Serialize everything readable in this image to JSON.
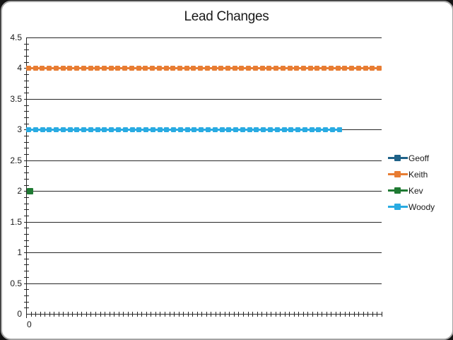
{
  "window": {
    "background_color": "#141414",
    "card_background": "#ffffff",
    "card_border_color": "#a3a3a3"
  },
  "chart_data": {
    "type": "line",
    "title": "Lead Changes",
    "xlabel": "",
    "ylabel": "",
    "y_axis": {
      "min": 0,
      "max": 4.5,
      "major_step": 0.5,
      "minor_step": 0.1,
      "tick_labels": [
        "4.5",
        "4",
        "3.5",
        "3",
        "2.5",
        "2",
        "1.5",
        "1",
        "0.5",
        "0"
      ]
    },
    "x_axis": {
      "tick_labels": [
        "0"
      ],
      "minor_tick_count": 77
    },
    "grid": "horizontal gridlines at every 0.5, black",
    "legend_position": "right",
    "series": [
      {
        "name": "Geoff",
        "color": "#1f6288",
        "value": null,
        "num_markers": 0,
        "start_fraction": 0,
        "end_fraction": 0,
        "note": "legend entry only - no visible data points in plot"
      },
      {
        "name": "Keith",
        "color": "#e87d33",
        "value": 4,
        "num_markers": 52,
        "start_fraction": 0,
        "end_fraction": 1.0
      },
      {
        "name": "Kev",
        "color": "#1f7a33",
        "value": 2,
        "num_markers": 1,
        "start_fraction": 0,
        "end_fraction": 0.018
      },
      {
        "name": "Woody",
        "color": "#29abe2",
        "value": 3,
        "num_markers": 46,
        "start_fraction": 0,
        "end_fraction": 0.888
      }
    ],
    "axis_color": "#262626",
    "text_color": "#1a1a1a"
  }
}
